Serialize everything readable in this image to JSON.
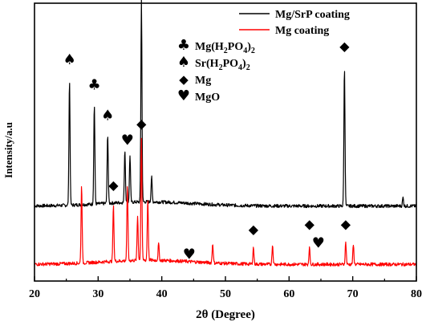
{
  "chart_data": {
    "type": "line",
    "title": "",
    "xlabel": "2θ (Degree)",
    "ylabel": "Intensity/a.u",
    "xlim": [
      20,
      80
    ],
    "xticks": [
      20,
      30,
      40,
      50,
      60,
      70,
      80
    ],
    "y_ticks_shown": false,
    "legend_position": "top-right",
    "series": [
      {
        "name": "Mg/SrP coating",
        "color": "#000000",
        "baseline": 0.27,
        "peaks": [
          {
            "x": 25.5,
            "y": 0.72
          },
          {
            "x": 29.4,
            "y": 0.63
          },
          {
            "x": 31.5,
            "y": 0.52
          },
          {
            "x": 34.2,
            "y": 0.46
          },
          {
            "x": 35.0,
            "y": 0.44
          },
          {
            "x": 36.8,
            "y": 1.0
          },
          {
            "x": 38.4,
            "y": 0.36
          },
          {
            "x": 68.7,
            "y": 0.77
          },
          {
            "x": 77.9,
            "y": 0.3
          }
        ]
      },
      {
        "name": "Mg coating",
        "color": "#ff0000",
        "baseline": 0.06,
        "peaks": [
          {
            "x": 27.4,
            "y": 0.34
          },
          {
            "x": 32.4,
            "y": 0.26
          },
          {
            "x": 34.6,
            "y": 0.33
          },
          {
            "x": 36.2,
            "y": 0.22
          },
          {
            "x": 36.8,
            "y": 0.5
          },
          {
            "x": 37.8,
            "y": 0.28
          },
          {
            "x": 39.5,
            "y": 0.12
          },
          {
            "x": 48.0,
            "y": 0.13
          },
          {
            "x": 54.4,
            "y": 0.12
          },
          {
            "x": 57.4,
            "y": 0.13
          },
          {
            "x": 63.2,
            "y": 0.12
          },
          {
            "x": 68.9,
            "y": 0.14
          },
          {
            "x": 70.1,
            "y": 0.13
          }
        ]
      }
    ],
    "phase_key": [
      {
        "symbol": "♣",
        "label_parts": [
          "Mg(H",
          "2",
          "PO",
          "4",
          ")",
          "2"
        ]
      },
      {
        "symbol": "♠",
        "label_parts": [
          "Sr(H",
          "2",
          "PO",
          "4",
          ")",
          "2"
        ]
      },
      {
        "symbol": "◆",
        "label_parts": [
          "Mg",
          "",
          "",
          "",
          "",
          ""
        ]
      },
      {
        "symbol": "♥",
        "label_parts": [
          "MgO",
          "",
          "",
          "",
          "",
          ""
        ]
      }
    ],
    "annotations": [
      {
        "symbol": "♠",
        "x": 25.5,
        "y": 0.78
      },
      {
        "symbol": "♣",
        "x": 29.4,
        "y": 0.69
      },
      {
        "symbol": "♠",
        "x": 31.5,
        "y": 0.58
      },
      {
        "symbol": "♥",
        "x": 34.6,
        "y": 0.49
      },
      {
        "symbol": "◆",
        "x": 32.4,
        "y": 0.33
      },
      {
        "symbol": "◆",
        "x": 36.8,
        "y": 1.05
      },
      {
        "symbol": "◆",
        "x": 36.8,
        "y": 0.55
      },
      {
        "symbol": "♥",
        "x": 44.3,
        "y": 0.08
      },
      {
        "symbol": "◆",
        "x": 54.4,
        "y": 0.17
      },
      {
        "symbol": "◆",
        "x": 63.2,
        "y": 0.19
      },
      {
        "symbol": "♥",
        "x": 64.6,
        "y": 0.12
      },
      {
        "symbol": "◆",
        "x": 68.9,
        "y": 0.19
      },
      {
        "symbol": "◆",
        "x": 68.7,
        "y": 0.83
      }
    ]
  }
}
